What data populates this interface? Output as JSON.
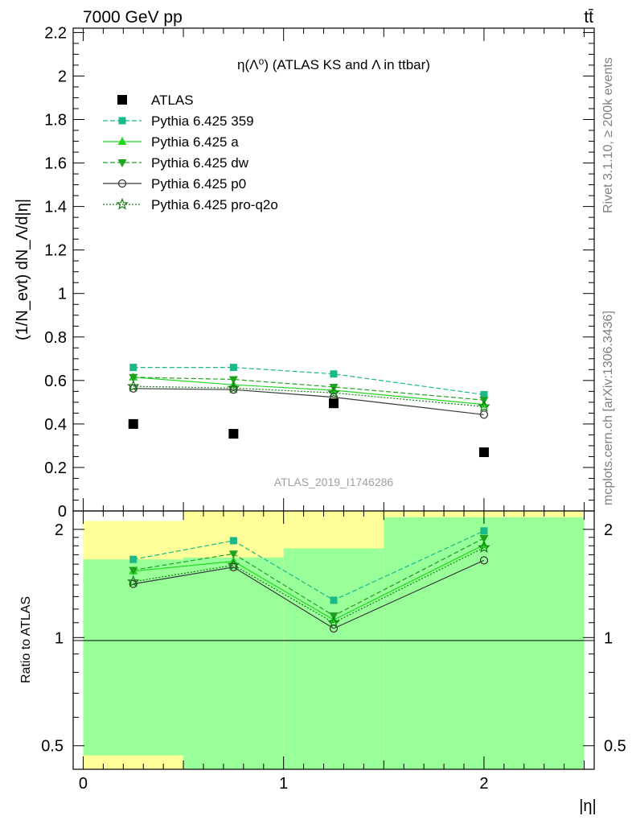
{
  "header": {
    "left": "7000 GeV pp",
    "right": "tt̄"
  },
  "side_labels": {
    "rivet": "Rivet 3.1.10, ≥ 200k events",
    "mcplots": "mcplots.cern.ch [arXiv:1306.3436]"
  },
  "watermark": "ATLAS_2019_I1746286",
  "chart_data": [
    {
      "type": "scatter",
      "title": "η(Λ⁰) (ATLAS KS and Λ in ttbar)",
      "xlabel": "|η|",
      "ylabel": "(1/N_evt) dN_Λ/d|η|",
      "xlim": [
        -0.05,
        2.55
      ],
      "ylim": [
        0,
        2.22
      ],
      "x_ticks": [
        0,
        1,
        2
      ],
      "y_ticks": [
        0,
        0.2,
        0.4,
        0.6,
        0.8,
        1,
        1.2,
        1.4,
        1.6,
        1.8,
        2,
        2.2
      ],
      "y_tick_labels": [
        "0",
        "0.2",
        "0.4",
        "0.6",
        "0.8",
        "1",
        "1.2",
        "1.4",
        "1.6",
        "1.8",
        "2",
        "2.2"
      ],
      "x": [
        0.25,
        0.75,
        1.25,
        2.0
      ],
      "data": {
        "name": "ATLAS",
        "values": [
          0.4,
          0.355,
          0.495,
          0.27
        ]
      },
      "series": [
        {
          "name": "Pythia 6.425 359",
          "color": "#19b98a",
          "dash": "6,3",
          "marker": "square",
          "values": [
            0.66,
            0.66,
            0.63,
            0.535
          ]
        },
        {
          "name": "Pythia 6.425 a",
          "color": "#22d622",
          "dash": "",
          "marker": "triangle-up",
          "values": [
            0.615,
            0.58,
            0.555,
            0.49
          ]
        },
        {
          "name": "Pythia 6.425 dw",
          "color": "#1fa31f",
          "dash": "6,3",
          "marker": "triangle-down",
          "values": [
            0.615,
            0.605,
            0.57,
            0.51
          ]
        },
        {
          "name": "Pythia 6.425 p0",
          "color": "#3a3a3a",
          "dash": "",
          "marker": "circle-open",
          "values": [
            0.563,
            0.558,
            0.523,
            0.443
          ]
        },
        {
          "name": "Pythia 6.425 pro-q2o",
          "color": "#157a15",
          "dash": "2,2",
          "marker": "star-open",
          "values": [
            0.573,
            0.565,
            0.543,
            0.48
          ]
        }
      ],
      "legend_position": "top-left",
      "grid": false
    },
    {
      "type": "line",
      "ylabel": "Ratio to ATLAS",
      "xlabel": "|η|",
      "log_scale_y": true,
      "ylim": [
        0.43,
        2.25
      ],
      "y_ticks": [
        0.5,
        1,
        2
      ],
      "y_tick_labels": [
        "0.5",
        "1",
        "2"
      ],
      "x_ticks": [
        0,
        1,
        2
      ],
      "reference_line": 1,
      "x": [
        0.25,
        0.75,
        1.25,
        2.0
      ],
      "bands": [
        {
          "x_range": [
            0,
            0.5
          ],
          "green": [
            0.47,
            1.65
          ],
          "yellow": [
            0.43,
            2.11
          ]
        },
        {
          "x_range": [
            0.5,
            1.0
          ],
          "green": [
            0.43,
            1.67
          ],
          "yellow": [
            0.43,
            2.25
          ]
        },
        {
          "x_range": [
            1.0,
            1.5
          ],
          "green": [
            0.43,
            1.77
          ],
          "yellow": [
            0.43,
            2.25
          ]
        },
        {
          "x_range": [
            1.5,
            2.5
          ],
          "green": [
            0.43,
            2.16
          ],
          "yellow": [
            0.43,
            2.25
          ]
        }
      ],
      "series": [
        {
          "name": "Pythia 6.425 359",
          "values": [
            1.65,
            1.86,
            1.27,
            1.98
          ]
        },
        {
          "name": "Pythia 6.425 a",
          "values": [
            1.53,
            1.63,
            1.12,
            1.81
          ]
        },
        {
          "name": "Pythia 6.425 dw",
          "values": [
            1.54,
            1.71,
            1.15,
            1.89
          ]
        },
        {
          "name": "Pythia 6.425 p0",
          "values": [
            1.41,
            1.57,
            1.06,
            1.64
          ]
        },
        {
          "name": "Pythia 6.425 pro-q2o",
          "values": [
            1.43,
            1.59,
            1.1,
            1.78
          ]
        }
      ]
    }
  ],
  "colors": {
    "band_green": "#99ff99",
    "band_yellow": "#ffff99",
    "data": "#000000"
  }
}
